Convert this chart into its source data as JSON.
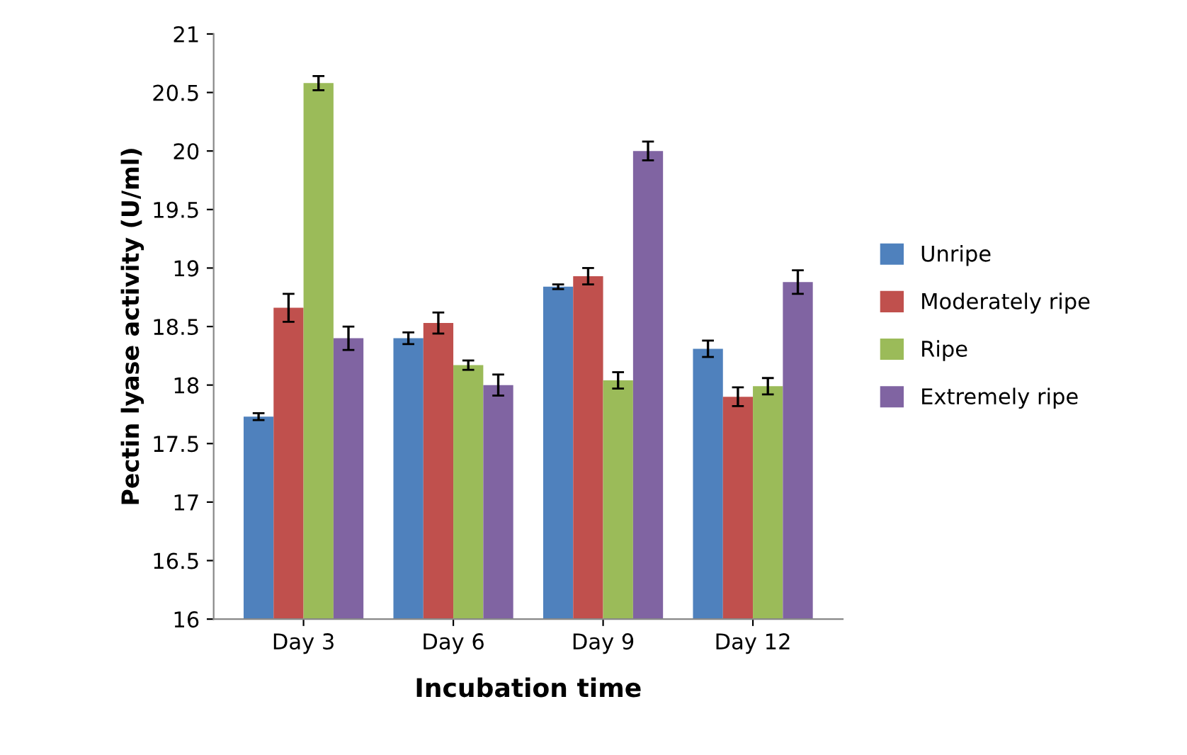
{
  "chart_data": {
    "type": "bar",
    "xlabel": "Incubation time",
    "ylabel": "Pectin lyase activity (U/ml)",
    "categories": [
      "Day 3",
      "Day 6",
      "Day 9",
      "Day 12"
    ],
    "series": [
      {
        "name": "Unripe",
        "color": "#4f81bd",
        "values": [
          17.73,
          18.4,
          18.84,
          18.31
        ],
        "errors": [
          0.03,
          0.05,
          0.02,
          0.07
        ]
      },
      {
        "name": "Moderately ripe",
        "color": "#c0504d",
        "values": [
          18.66,
          18.53,
          18.93,
          17.9
        ],
        "errors": [
          0.12,
          0.09,
          0.07,
          0.08
        ]
      },
      {
        "name": "Ripe",
        "color": "#9bbb59",
        "values": [
          20.58,
          18.17,
          18.04,
          17.99
        ],
        "errors": [
          0.06,
          0.04,
          0.07,
          0.07
        ]
      },
      {
        "name": "Extremely ripe",
        "color": "#8064a2",
        "values": [
          18.4,
          18.0,
          20.0,
          18.88
        ],
        "errors": [
          0.1,
          0.09,
          0.08,
          0.1
        ]
      }
    ],
    "ylim": [
      16,
      21
    ],
    "yticks": [
      16,
      16.5,
      17,
      17.5,
      18,
      18.5,
      19,
      19.5,
      20,
      20.5,
      21
    ],
    "grid": false,
    "legend": "right"
  }
}
